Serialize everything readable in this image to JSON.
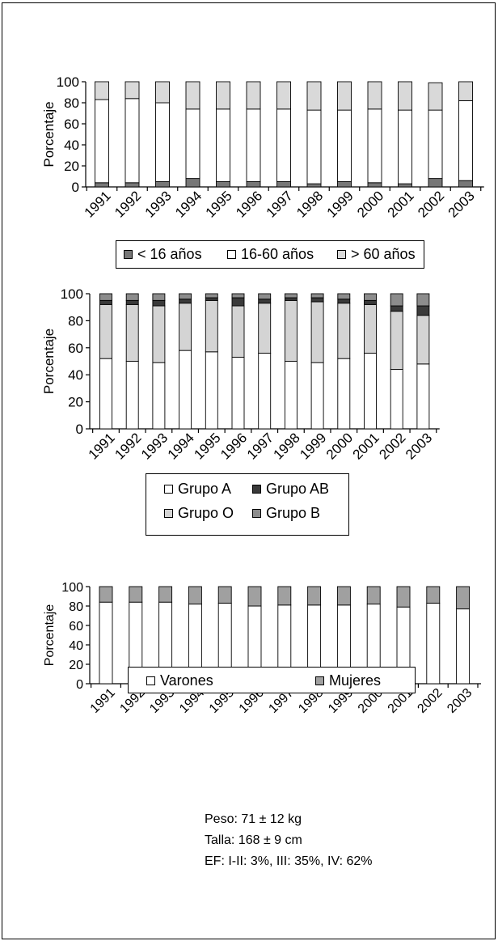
{
  "chart_data": [
    {
      "type": "bar",
      "stacked": true,
      "ylabel": "Porcentaje",
      "ylim": [
        0,
        100
      ],
      "yticks": [
        0,
        20,
        40,
        60,
        80,
        100
      ],
      "categories": [
        "1991",
        "1992",
        "1993",
        "1994",
        "1995",
        "1996",
        "1997",
        "1998",
        "1999",
        "2000",
        "2001",
        "2002",
        "2003"
      ],
      "series": [
        {
          "name": "< 16 años",
          "color": "#777777",
          "values": [
            4,
            4,
            5,
            8,
            5,
            5,
            5,
            3,
            5,
            4,
            3,
            8,
            6
          ]
        },
        {
          "name": "16-60 años",
          "color": "#ffffff",
          "values": [
            79,
            80,
            75,
            66,
            69,
            69,
            69,
            70,
            68,
            70,
            70,
            65,
            76
          ]
        },
        {
          "name": "> 60 años",
          "color": "#d9d9d9",
          "values": [
            17,
            16,
            20,
            26,
            26,
            26,
            26,
            27,
            27,
            26,
            27,
            26,
            18
          ]
        }
      ],
      "legend": {
        "position": "bottom"
      }
    },
    {
      "type": "bar",
      "stacked": true,
      "ylabel": "Porcentaje",
      "ylim": [
        0,
        100
      ],
      "yticks": [
        0,
        20,
        40,
        60,
        80,
        100
      ],
      "categories": [
        "1991",
        "1992",
        "1993",
        "1994",
        "1995",
        "1996",
        "1997",
        "1998",
        "1999",
        "2000",
        "2001",
        "2002",
        "2003"
      ],
      "series": [
        {
          "name": "Grupo A",
          "color": "#ffffff",
          "values": [
            52,
            50,
            49,
            58,
            57,
            53,
            56,
            50,
            49,
            52,
            56,
            44,
            48
          ]
        },
        {
          "name": "Grupo O",
          "color": "#d4d4d4",
          "values": [
            40,
            42,
            42,
            35,
            38,
            38,
            37,
            45,
            45,
            41,
            36,
            43,
            36
          ]
        },
        {
          "name": "Grupo AB",
          "color": "#3a3a3a",
          "values": [
            3,
            3,
            4,
            3,
            2,
            6,
            3,
            2,
            3,
            3,
            3,
            4,
            7
          ]
        },
        {
          "name": "Grupo B",
          "color": "#8c8c8c",
          "values": [
            5,
            5,
            5,
            4,
            3,
            3,
            4,
            3,
            3,
            4,
            5,
            9,
            9
          ]
        }
      ],
      "legend": {
        "position": "bottom"
      }
    },
    {
      "type": "bar",
      "stacked": true,
      "ylabel": "Porcentaje",
      "ylim": [
        0,
        100
      ],
      "yticks": [
        0,
        20,
        40,
        60,
        80,
        100
      ],
      "categories": [
        "1991",
        "1992",
        "1993",
        "1994",
        "1995",
        "1996",
        "1997",
        "1998",
        "1999",
        "2000",
        "2001",
        "2002",
        "2003"
      ],
      "series": [
        {
          "name": "Varones",
          "color": "#ffffff",
          "values": [
            84,
            84,
            84,
            82,
            83,
            80,
            81,
            81,
            81,
            82,
            79,
            83,
            77
          ]
        },
        {
          "name": "Mujeres",
          "color": "#a0a0a0",
          "values": [
            16,
            16,
            16,
            18,
            17,
            20,
            19,
            19,
            19,
            18,
            21,
            17,
            23
          ]
        }
      ],
      "legend": {
        "position": "bottom"
      }
    }
  ],
  "notes": {
    "peso": "Peso: 71 ± 12 kg",
    "talla": "Talla: 168 ± 9 cm",
    "ef": "EF: I-II: 3%, III: 35%, IV: 62%"
  }
}
